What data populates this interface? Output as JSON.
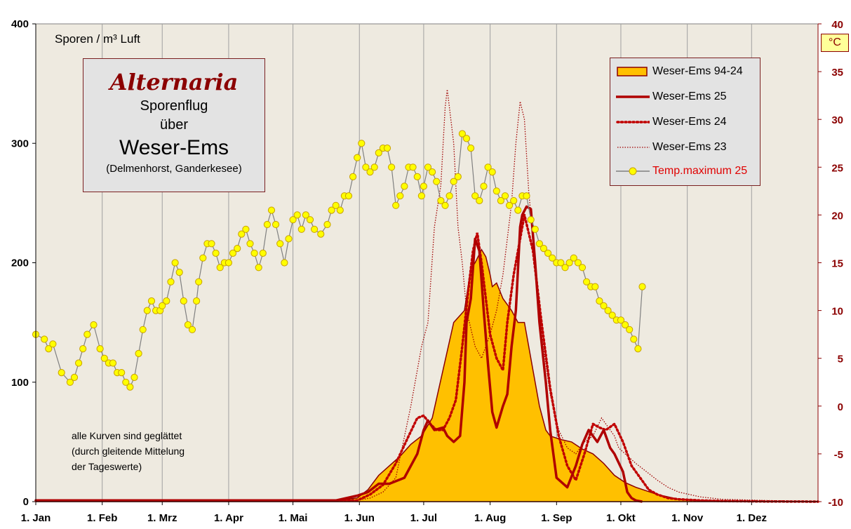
{
  "chart_data": {
    "type": "area+line",
    "title": "Alternaria",
    "subtitle_lines": [
      "Sporenflug",
      "über",
      "Weser-Ems",
      "(Delmenhorst,  Ganderkesee)"
    ],
    "ylabel": "Sporen / m³ Luft",
    "y2label": "°C",
    "ylim": [
      0,
      400
    ],
    "y2lim": [
      -10,
      40
    ],
    "yticks": [
      "0",
      "100",
      "200",
      "300",
      "400"
    ],
    "y2ticks": [
      "-10",
      "-5",
      "0",
      "5",
      "10",
      "15",
      "20",
      "25",
      "30",
      "35",
      "40"
    ],
    "xlim": [
      0,
      365
    ],
    "x_tick_days": [
      0,
      31,
      59,
      90,
      120,
      151,
      181,
      212,
      243,
      273,
      304,
      334
    ],
    "x_tick_labels": [
      "1. Jan",
      "1. Feb",
      "1. Mrz",
      "1. Apr",
      "1. Mai",
      "1. Jun",
      "1. Jul",
      "1. Aug",
      "1. Sep",
      "1. Okt",
      "1. Nov",
      "1. Dez"
    ],
    "note_lines": [
      "alle Kurven  sind geglättet",
      "(durch gleitende Mittelung",
      "der Tageswerte)"
    ],
    "series": [
      {
        "name": "Weser-Ems 94-24",
        "style": "area",
        "color": "#ffc000",
        "edge": "#8b0000",
        "x": [
          0,
          140,
          150,
          155,
          160,
          165,
          170,
          175,
          180,
          185,
          190,
          195,
          200,
          203,
          205,
          208,
          210,
          212,
          213,
          215,
          218,
          222,
          225,
          228,
          232,
          235,
          238,
          240,
          245,
          250,
          255,
          260,
          265,
          270,
          275,
          280,
          285,
          290,
          295,
          300,
          310,
          320,
          330,
          340,
          365
        ],
        "y": [
          1,
          1,
          3,
          10,
          22,
          30,
          38,
          48,
          55,
          70,
          110,
          150,
          160,
          195,
          200,
          211,
          205,
          190,
          180,
          183,
          170,
          160,
          150,
          150,
          110,
          80,
          60,
          55,
          52,
          50,
          44,
          40,
          32,
          22,
          16,
          12,
          9,
          6,
          4,
          2,
          1,
          0.5,
          0.3,
          0.2,
          0
        ]
      },
      {
        "name": "Weser-Ems 25",
        "style": "solid",
        "color": "#b00000",
        "x": [
          0,
          140,
          150,
          155,
          160,
          165,
          172,
          178,
          181,
          183,
          186,
          190,
          192,
          195,
          198,
          200,
          201,
          203,
          205,
          207,
          209,
          211,
          213,
          215,
          218,
          220,
          222,
          224,
          226,
          227,
          229,
          231,
          233,
          235,
          238,
          240,
          243,
          248,
          252,
          255,
          258,
          260,
          262,
          265,
          268,
          270,
          274,
          276,
          278,
          280,
          283
        ],
        "y": [
          1,
          1,
          5,
          8,
          15,
          15,
          20,
          40,
          60,
          68,
          60,
          62,
          55,
          50,
          55,
          100,
          150,
          170,
          220,
          210,
          160,
          115,
          75,
          62,
          80,
          90,
          130,
          160,
          230,
          240,
          247,
          245,
          200,
          150,
          100,
          60,
          20,
          12,
          30,
          48,
          60,
          55,
          50,
          60,
          45,
          40,
          25,
          8,
          3,
          1,
          0
        ]
      },
      {
        "name": "Weser-Ems 24",
        "style": "dotted",
        "color": "#c00000",
        "x": [
          0,
          150,
          156,
          162,
          168,
          174,
          178,
          181,
          184,
          187,
          190,
          193,
          196,
          199,
          202,
          204,
          206,
          208,
          210,
          212,
          215,
          218,
          220,
          223,
          226,
          228,
          232,
          236,
          240,
          244,
          248,
          252,
          256,
          260,
          263,
          266,
          270,
          274,
          278,
          282,
          286,
          290,
          295,
          300,
          310,
          320,
          340,
          365
        ],
        "y": [
          1,
          1,
          6,
          14,
          32,
          55,
          70,
          72,
          65,
          60,
          60,
          70,
          85,
          130,
          180,
          210,
          225,
          200,
          170,
          140,
          120,
          110,
          150,
          190,
          220,
          240,
          210,
          150,
          95,
          55,
          30,
          18,
          40,
          65,
          62,
          60,
          65,
          50,
          30,
          20,
          10,
          6,
          3,
          2,
          1,
          0.5,
          0.2,
          0
        ]
      },
      {
        "name": "Weser-Ems 23",
        "style": "thin-dotted",
        "color": "#a00000",
        "x": [
          0,
          150,
          156,
          162,
          168,
          175,
          180,
          183,
          186,
          189,
          191,
          192,
          193,
          195,
          197,
          199,
          201,
          205,
          208,
          212,
          215,
          218,
          220,
          222,
          224,
          226,
          228,
          230,
          233,
          236,
          240,
          244,
          248,
          252,
          256,
          260,
          264,
          268,
          270,
          272,
          275,
          280,
          285,
          290,
          295,
          300,
          310,
          320,
          340,
          365
        ],
        "y": [
          1,
          1,
          3,
          8,
          20,
          80,
          130,
          150,
          230,
          265,
          330,
          345,
          330,
          300,
          230,
          200,
          160,
          130,
          120,
          140,
          160,
          190,
          220,
          250,
          300,
          335,
          320,
          260,
          200,
          140,
          90,
          60,
          45,
          40,
          50,
          55,
          70,
          60,
          55,
          45,
          40,
          32,
          25,
          18,
          12,
          8,
          4,
          2,
          1,
          0
        ]
      },
      {
        "name": "Temp.maximum 25",
        "style": "line-markers",
        "color": "#808080",
        "marker": "#ffff00",
        "x": [
          0,
          4,
          6,
          8,
          12,
          16,
          18,
          20,
          22,
          24,
          27,
          30,
          32,
          34,
          36,
          38,
          40,
          42,
          44,
          46,
          48,
          50,
          52,
          54,
          56,
          58,
          59,
          61,
          63,
          65,
          67,
          69,
          71,
          73,
          75,
          76,
          78,
          80,
          82,
          84,
          86,
          88,
          90,
          92,
          94,
          96,
          98,
          100,
          102,
          104,
          106,
          108,
          110,
          112,
          114,
          116,
          118,
          120,
          122,
          124,
          126,
          128,
          130,
          133,
          136,
          138,
          140,
          142,
          144,
          146,
          148,
          150,
          152,
          154,
          156,
          158,
          160,
          162,
          164,
          166,
          168,
          170,
          172,
          174,
          176,
          178,
          180,
          181,
          183,
          185,
          187,
          189,
          191,
          193,
          195,
          197,
          199,
          201,
          203,
          205,
          207,
          209,
          211,
          213,
          215,
          217,
          219,
          221,
          223,
          225,
          227,
          229,
          231,
          233,
          235,
          237,
          239,
          241,
          243,
          245,
          247,
          249,
          251,
          253,
          255,
          257,
          259,
          261,
          263,
          265,
          267,
          269,
          271,
          273,
          275,
          277,
          279,
          281,
          283
        ],
        "y": [
          7.5,
          7,
          6,
          6.5,
          3.5,
          2.5,
          3,
          4.5,
          6,
          7.5,
          8.5,
          6,
          5,
          4.5,
          4.5,
          3.5,
          3.5,
          2.5,
          2,
          3,
          5.5,
          8,
          10,
          11,
          10,
          10,
          10.5,
          11,
          13,
          15,
          14,
          11,
          8.5,
          8,
          11,
          13,
          15.5,
          17,
          17,
          16,
          14.5,
          15,
          15,
          16,
          16.5,
          18,
          18.5,
          17,
          16,
          14.5,
          16,
          19,
          20.5,
          19,
          17,
          15,
          17.5,
          19.5,
          20,
          18.5,
          20,
          19.5,
          18.5,
          18,
          19,
          20.5,
          21,
          20.5,
          22,
          22,
          24,
          26,
          27.5,
          25,
          24.5,
          25,
          26.5,
          27,
          27,
          25,
          21,
          22,
          23,
          25,
          25,
          24,
          22,
          23,
          25,
          24.5,
          23.5,
          21.5,
          21,
          22,
          23.5,
          24,
          28.5,
          28,
          27,
          22,
          21.5,
          23,
          25,
          24.5,
          22.5,
          21.5,
          22,
          21,
          21.5,
          20.5,
          22,
          22,
          19.5,
          18.5,
          17,
          16.5,
          16,
          15.5,
          15,
          15,
          14.5,
          15,
          15.5,
          15,
          14.5,
          13,
          12.5,
          12.5,
          11,
          10.5,
          10,
          9.5,
          9,
          9,
          8.5,
          8,
          7,
          6,
          12.5
        ]
      }
    ]
  },
  "palette": {
    "plot_bg": "#eeeae0",
    "grid": "#a0a0a0",
    "axis_right": "#8b0000"
  }
}
